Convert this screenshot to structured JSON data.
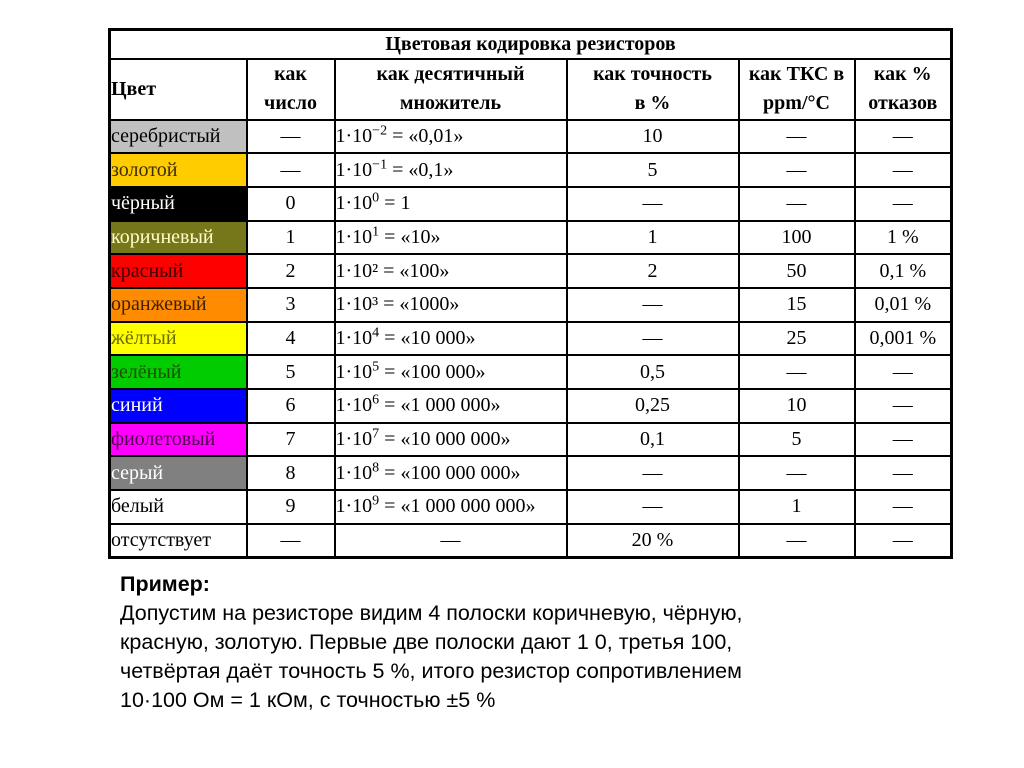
{
  "table": {
    "title": "Цветовая кодировка резисторов",
    "headers": {
      "color": "Цвет",
      "number_l1": "как",
      "number_l2": "число",
      "multiplier_l1": "как десятичный",
      "multiplier_l2": "множитель",
      "accuracy_l1": "как точность",
      "accuracy_l2": "в %",
      "tcr_l1": "как ТКС в",
      "tcr_l2": "ppm/°C",
      "failure_l1": "как %",
      "failure_l2": "отказов"
    },
    "rows": [
      {
        "color": "серебристый",
        "bg": "#C0C0C0",
        "fg": "#000000",
        "number": "—",
        "mult_base": "1·10",
        "mult_exp": "−2",
        "mult_rest": "= «0,01»",
        "mult_center": false,
        "accuracy": "10",
        "tcr": "—",
        "failure": "—"
      },
      {
        "color": "золотой",
        "bg": "#FFCC00",
        "fg": "#3A2E00",
        "number": "—",
        "mult_base": "1·10",
        "mult_exp": "−1",
        "mult_rest": "= «0,1»",
        "mult_center": false,
        "accuracy": "5",
        "tcr": "—",
        "failure": "—"
      },
      {
        "color": "чёрный",
        "bg": "#000000",
        "fg": "#FFFFFF",
        "number": "0",
        "mult_base": "1·10",
        "mult_exp": "0",
        "mult_rest": "= 1",
        "mult_center": false,
        "accuracy": "—",
        "tcr": "—",
        "failure": "—"
      },
      {
        "color": "коричневый",
        "bg": "#76761B",
        "fg": "#FFFFC8",
        "number": "1",
        "mult_base": "1·10",
        "mult_exp": "1",
        "mult_rest": "= «10»",
        "mult_center": false,
        "accuracy": "1",
        "tcr": "100",
        "failure": "1 %"
      },
      {
        "color": "красный",
        "bg": "#FF0000",
        "fg": "#3F0000",
        "number": "2",
        "mult_base": "1·10²",
        "mult_exp": "",
        "mult_rest": "= «100»",
        "mult_center": false,
        "accuracy": "2",
        "tcr": "50",
        "failure": "0,1 %"
      },
      {
        "color": "оранжевый",
        "bg": "#FF8C00",
        "fg": "#3F2000",
        "number": "3",
        "mult_base": "1·10³",
        "mult_exp": "",
        "mult_rest": "= «1000»",
        "mult_center": false,
        "accuracy": "—",
        "tcr": "15",
        "failure": "0,01 %"
      },
      {
        "color": "жёлтый",
        "bg": "#FFFF00",
        "fg": "#6B6B00",
        "number": "4",
        "mult_base": "1·10",
        "mult_exp": "4",
        "mult_rest": "= «10 000»",
        "mult_center": false,
        "accuracy": "—",
        "tcr": "25",
        "failure": "0,001 %"
      },
      {
        "color": "зелёный",
        "bg": "#00CC00",
        "fg": "#1F4D00",
        "number": "5",
        "mult_base": "1·10",
        "mult_exp": "5",
        "mult_rest": "= «100 000»",
        "mult_center": false,
        "accuracy": "0,5",
        "tcr": "—",
        "failure": "—"
      },
      {
        "color": "синий",
        "bg": "#0000FF",
        "fg": "#FFFFFF",
        "number": "6",
        "mult_base": "1·10",
        "mult_exp": "6",
        "mult_rest": "= «1 000 000»",
        "mult_center": false,
        "accuracy": "0,25",
        "tcr": "10",
        "failure": "—"
      },
      {
        "color": "фиолетовый",
        "bg": "#FF00FF",
        "fg": "#4E004E",
        "number": "7",
        "mult_base": "1·10",
        "mult_exp": "7",
        "mult_rest": "= «10 000 000»",
        "mult_center": false,
        "accuracy": "0,1",
        "tcr": "5",
        "failure": "—"
      },
      {
        "color": "серый",
        "bg": "#808080",
        "fg": "#FFFFFF",
        "number": "8",
        "mult_base": "1·10",
        "mult_exp": "8",
        "mult_rest": "= «100 000 000»",
        "mult_center": false,
        "accuracy": "—",
        "tcr": "—",
        "failure": "—"
      },
      {
        "color": "белый",
        "bg": "#FFFFFF",
        "fg": "#000000",
        "number": "9",
        "mult_base": "1·10",
        "mult_exp": "9",
        "mult_rest": "= «1 000 000 000»",
        "mult_center": false,
        "accuracy": "—",
        "tcr": "1",
        "failure": "—"
      },
      {
        "color": "отсутствует",
        "bg": "#FFFFFF",
        "fg": "#000000",
        "number": "—",
        "mult_base": "—",
        "mult_exp": "",
        "mult_rest": "",
        "mult_center": true,
        "accuracy": "20 %",
        "tcr": "—",
        "failure": "—"
      }
    ]
  },
  "example": {
    "heading": "Пример:",
    "lines": [
      "Допустим на резисторе видим 4 полоски коричневую, чёрную,",
      "красную, золотую. Первые две полоски дают 1 0, третья 100,",
      "четвёртая даёт точность 5 %, итого резистор сопротивлением",
      "10·100 Ом = 1 кОм, с точностью ±5 %"
    ]
  }
}
